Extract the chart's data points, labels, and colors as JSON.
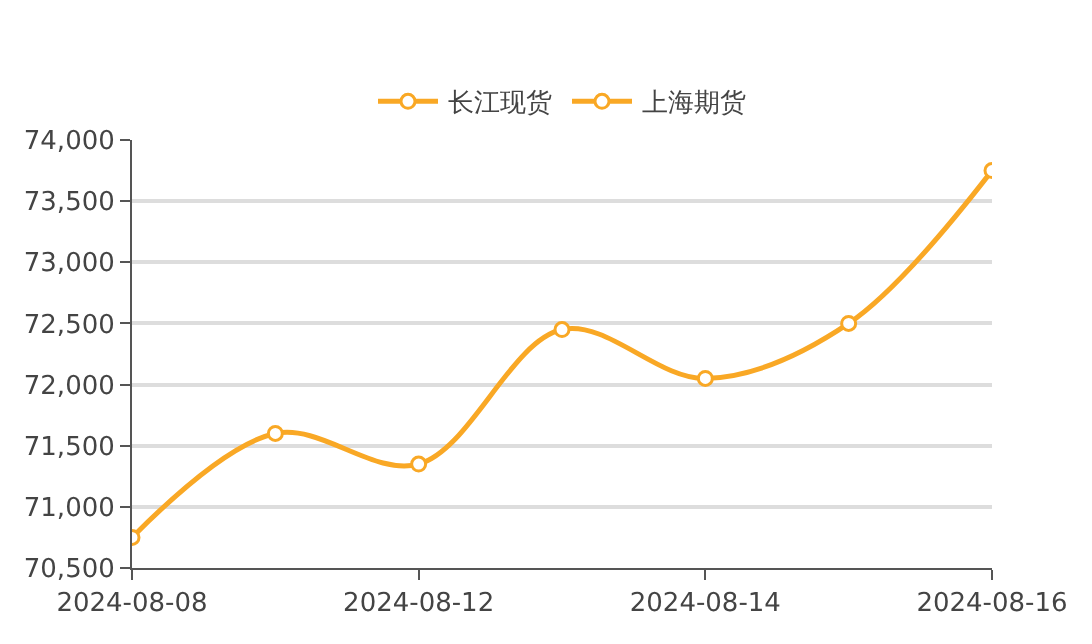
{
  "chart_data": {
    "type": "line",
    "categories": [
      "2024-08-08",
      null,
      "2024-08-12",
      null,
      "2024-08-14",
      null,
      "2024-08-16"
    ],
    "series": [
      {
        "name": "长江现货",
        "color": "#f9a825",
        "values": [
          70750,
          71600,
          71350,
          72450,
          72050,
          72500,
          73750
        ]
      },
      {
        "name": "上海期货",
        "color": "#f9a825",
        "values": [
          null,
          null,
          null,
          null,
          null,
          null,
          null
        ]
      }
    ],
    "ylim": [
      70500,
      74000
    ],
    "yticks": [
      {
        "value": 70500,
        "label": "70,500"
      },
      {
        "value": 71000,
        "label": "71,000"
      },
      {
        "value": 71500,
        "label": "71,500"
      },
      {
        "value": 72000,
        "label": "72,000"
      },
      {
        "value": 72500,
        "label": "72,500"
      },
      {
        "value": 73000,
        "label": "73,000"
      },
      {
        "value": 73500,
        "label": "73,500"
      },
      {
        "value": 74000,
        "label": "74,000"
      }
    ],
    "grid": "y",
    "legend": "top",
    "marker": "circle",
    "line_style": "solid"
  }
}
